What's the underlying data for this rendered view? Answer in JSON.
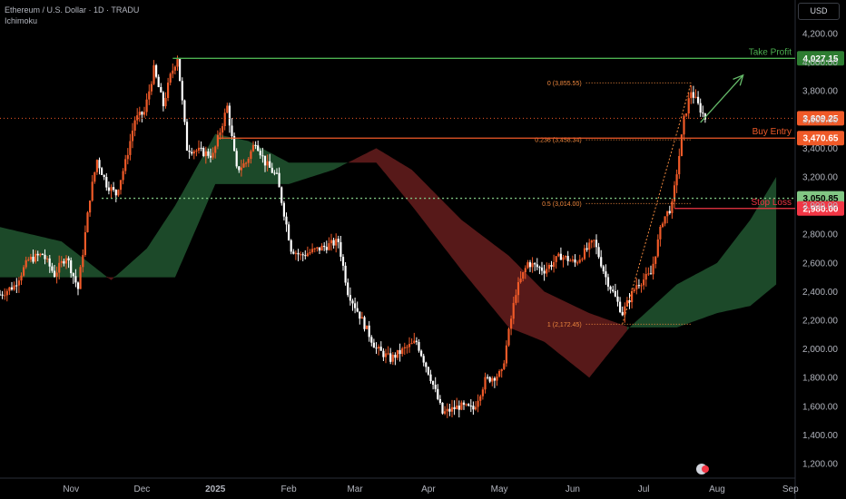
{
  "header": {
    "title": "Ethereum / U.S. Dollar · 1D · TRADU",
    "indicator": "Ichimoku"
  },
  "currency_button": "USD",
  "chart_data": {
    "type": "candlestick",
    "symbol": "Ethereum / U.S. Dollar",
    "timeframe": "1D",
    "price_axis": {
      "ticks": [
        4200,
        4000,
        3800,
        3600,
        3400,
        3200,
        3000,
        2800,
        2600,
        2400,
        2200,
        2000,
        1800,
        1600,
        1400,
        1200
      ],
      "tick_labels": [
        "4,200.00",
        "4,000.00",
        "3,800.00",
        "3,600.00",
        "3,400.00",
        "3,200.00",
        "3,000.00",
        "2,800.00",
        "2,600.00",
        "2,400.00",
        "2,200.00",
        "2,000.00",
        "1,800.00",
        "1,600.00",
        "1,400.00",
        "1,200.00"
      ],
      "ylim": [
        1150,
        4270
      ]
    },
    "time_axis": [
      {
        "label": "Nov",
        "date": "2024-11-01"
      },
      {
        "label": "Dec",
        "date": "2024-12-01"
      },
      {
        "label": "2025",
        "date": "2025-01-01"
      },
      {
        "label": "Feb",
        "date": "2025-02-01"
      },
      {
        "label": "Mar",
        "date": "2025-03-01"
      },
      {
        "label": "Apr",
        "date": "2025-04-01"
      },
      {
        "label": "May",
        "date": "2025-05-01"
      },
      {
        "label": "Jun",
        "date": "2025-06-01"
      },
      {
        "label": "Jul",
        "date": "2025-07-01"
      },
      {
        "label": "Aug",
        "date": "2025-08-01"
      },
      {
        "label": "Sep",
        "date": "2025-09-01"
      }
    ],
    "xlim": [
      "2024-10-02",
      "2025-09-03"
    ],
    "price_path": [
      {
        "date": "2024-10-02",
        "price": 2380
      },
      {
        "date": "2024-10-08",
        "price": 2440
      },
      {
        "date": "2024-10-14",
        "price": 2620
      },
      {
        "date": "2024-10-20",
        "price": 2660
      },
      {
        "date": "2024-10-25",
        "price": 2520
      },
      {
        "date": "2024-10-30",
        "price": 2650
      },
      {
        "date": "2024-11-04",
        "price": 2420
      },
      {
        "date": "2024-11-09",
        "price": 3060
      },
      {
        "date": "2024-11-12",
        "price": 3320
      },
      {
        "date": "2024-11-16",
        "price": 3150
      },
      {
        "date": "2024-11-20",
        "price": 3080
      },
      {
        "date": "2024-11-24",
        "price": 3300
      },
      {
        "date": "2024-11-28",
        "price": 3600
      },
      {
        "date": "2024-12-02",
        "price": 3650
      },
      {
        "date": "2024-12-06",
        "price": 3950
      },
      {
        "date": "2024-12-10",
        "price": 3700
      },
      {
        "date": "2024-12-13",
        "price": 3900
      },
      {
        "date": "2024-12-16",
        "price": 4040
      },
      {
        "date": "2024-12-20",
        "price": 3400
      },
      {
        "date": "2024-12-25",
        "price": 3380
      },
      {
        "date": "2024-12-31",
        "price": 3350
      },
      {
        "date": "2025-01-06",
        "price": 3690
      },
      {
        "date": "2025-01-10",
        "price": 3250
      },
      {
        "date": "2025-01-14",
        "price": 3300
      },
      {
        "date": "2025-01-18",
        "price": 3450
      },
      {
        "date": "2025-01-22",
        "price": 3300
      },
      {
        "date": "2025-01-27",
        "price": 3200
      },
      {
        "date": "2025-02-02",
        "price": 2700
      },
      {
        "date": "2025-02-06",
        "price": 2650
      },
      {
        "date": "2025-02-14",
        "price": 2700
      },
      {
        "date": "2025-02-22",
        "price": 2750
      },
      {
        "date": "2025-02-26",
        "price": 2400
      },
      {
        "date": "2025-03-04",
        "price": 2200
      },
      {
        "date": "2025-03-10",
        "price": 2000
      },
      {
        "date": "2025-03-16",
        "price": 1930
      },
      {
        "date": "2025-03-22",
        "price": 2000
      },
      {
        "date": "2025-03-27",
        "price": 2050
      },
      {
        "date": "2025-04-02",
        "price": 1800
      },
      {
        "date": "2025-04-07",
        "price": 1550
      },
      {
        "date": "2025-04-14",
        "price": 1600
      },
      {
        "date": "2025-04-20",
        "price": 1580
      },
      {
        "date": "2025-04-25",
        "price": 1780
      },
      {
        "date": "2025-05-02",
        "price": 1830
      },
      {
        "date": "2025-05-08",
        "price": 2400
      },
      {
        "date": "2025-05-13",
        "price": 2600
      },
      {
        "date": "2025-05-20",
        "price": 2550
      },
      {
        "date": "2025-05-27",
        "price": 2650
      },
      {
        "date": "2025-06-02",
        "price": 2600
      },
      {
        "date": "2025-06-10",
        "price": 2750
      },
      {
        "date": "2025-06-15",
        "price": 2500
      },
      {
        "date": "2025-06-22",
        "price": 2250
      },
      {
        "date": "2025-06-28",
        "price": 2450
      },
      {
        "date": "2025-07-04",
        "price": 2520
      },
      {
        "date": "2025-07-09",
        "price": 2900
      },
      {
        "date": "2025-07-13",
        "price": 3000
      },
      {
        "date": "2025-07-16",
        "price": 3350
      },
      {
        "date": "2025-07-18",
        "price": 3600
      },
      {
        "date": "2025-07-21",
        "price": 3800
      },
      {
        "date": "2025-07-24",
        "price": 3700
      },
      {
        "date": "2025-07-27",
        "price": 3609
      }
    ],
    "ichimoku_cloud": {
      "span_a": [
        {
          "date": "2024-10-02",
          "price": 2850
        },
        {
          "date": "2024-10-28",
          "price": 2750
        },
        {
          "date": "2024-11-18",
          "price": 2480
        },
        {
          "date": "2024-12-03",
          "price": 2700
        },
        {
          "date": "2024-12-15",
          "price": 3000
        },
        {
          "date": "2025-01-01",
          "price": 3500
        },
        {
          "date": "2025-01-15",
          "price": 3450
        },
        {
          "date": "2025-02-01",
          "price": 3300
        },
        {
          "date": "2025-02-20",
          "price": 3300
        },
        {
          "date": "2025-03-10",
          "price": 3300
        },
        {
          "date": "2025-03-25",
          "price": 3000
        },
        {
          "date": "2025-04-15",
          "price": 2550
        },
        {
          "date": "2025-05-05",
          "price": 2150
        },
        {
          "date": "2025-05-20",
          "price": 2050
        },
        {
          "date": "2025-06-08",
          "price": 1800
        },
        {
          "date": "2025-06-25",
          "price": 2150
        },
        {
          "date": "2025-07-15",
          "price": 2450
        },
        {
          "date": "2025-08-01",
          "price": 2600
        },
        {
          "date": "2025-08-15",
          "price": 2900
        },
        {
          "date": "2025-08-26",
          "price": 3200
        }
      ],
      "span_b": [
        {
          "date": "2024-10-02",
          "price": 2500
        },
        {
          "date": "2024-10-28",
          "price": 2500
        },
        {
          "date": "2024-11-18",
          "price": 2500
        },
        {
          "date": "2024-12-03",
          "price": 2500
        },
        {
          "date": "2024-12-15",
          "price": 2500
        },
        {
          "date": "2025-01-01",
          "price": 3150
        },
        {
          "date": "2025-01-15",
          "price": 3150
        },
        {
          "date": "2025-02-01",
          "price": 3150
        },
        {
          "date": "2025-02-20",
          "price": 3250
        },
        {
          "date": "2025-03-10",
          "price": 3400
        },
        {
          "date": "2025-03-25",
          "price": 3250
        },
        {
          "date": "2025-04-15",
          "price": 2900
        },
        {
          "date": "2025-05-05",
          "price": 2650
        },
        {
          "date": "2025-05-20",
          "price": 2400
        },
        {
          "date": "2025-06-08",
          "price": 2250
        },
        {
          "date": "2025-06-25",
          "price": 2150
        },
        {
          "date": "2025-07-15",
          "price": 2150
        },
        {
          "date": "2025-08-01",
          "price": 2250
        },
        {
          "date": "2025-08-15",
          "price": 2300
        },
        {
          "date": "2025-08-26",
          "price": 2450
        }
      ],
      "bull_color": "#1e4d2b",
      "bear_color": "#5c1a1a"
    },
    "levels": [
      {
        "name": "take_profit",
        "label": "Take Profit",
        "value": 4027.15,
        "tag": "4,027.15",
        "color": "#4caf50"
      },
      {
        "name": "last_price",
        "label": "",
        "value": 3609.25,
        "tag": "3,609.25",
        "color": "#f05a28"
      },
      {
        "name": "buy_entry",
        "label": "Buy Entry",
        "value": 3470.65,
        "tag": "3,470.65",
        "color": "#f05a28"
      },
      {
        "name": "support",
        "label": "",
        "value": 3050.85,
        "tag": "3,050.85",
        "color": "#81c784"
      },
      {
        "name": "stop_loss",
        "label": "Stop Loss",
        "value": 2980.0,
        "tag": "2,980.00",
        "color": "#f23645"
      }
    ],
    "fibonacci": {
      "from": {
        "date": "2025-06-22",
        "price": 2172.45
      },
      "to": {
        "date": "2025-07-21",
        "price": 3855.55
      },
      "levels": [
        {
          "ratio": "0",
          "label": "0 (3,855.55)",
          "value": 3855.55
        },
        {
          "ratio": "0.236",
          "label": "0.236 (3,458.34)",
          "value": 3458.34
        },
        {
          "ratio": "0.5",
          "label": "0.5 (3,014.00)",
          "value": 3014.0
        },
        {
          "ratio": "1",
          "label": "1 (2,172.45)",
          "value": 2172.45
        }
      ],
      "color": "#f0883e"
    },
    "arrow": {
      "from": {
        "date": "2025-07-25",
        "price": 3580
      },
      "to": {
        "date": "2025-08-12",
        "price": 3910
      },
      "color": "#66bb6a"
    },
    "grid": false,
    "colors": {
      "up": "#f05a28",
      "down": "#ffffff",
      "background": "#000000"
    }
  }
}
